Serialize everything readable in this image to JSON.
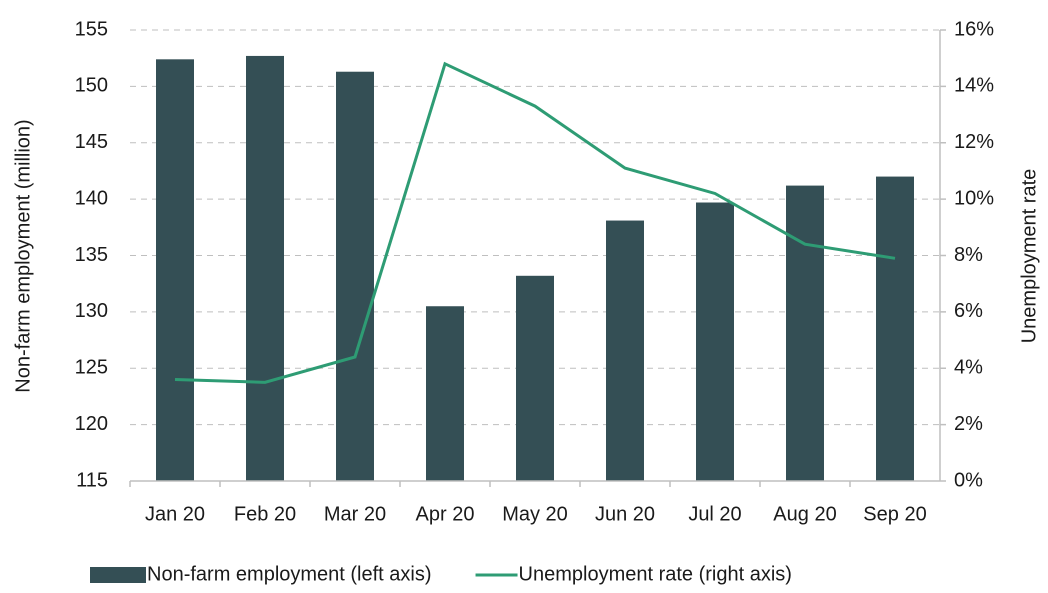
{
  "chart_data": {
    "type": "bar",
    "categories": [
      "Jan 20",
      "Feb 20",
      "Mar 20",
      "Apr 20",
      "May 20",
      "Jun 20",
      "Jul 20",
      "Aug 20",
      "Sep 20"
    ],
    "series": [
      {
        "name": "Non-farm employment (left axis)",
        "color": "#344f55",
        "type": "bar",
        "values": [
          152.4,
          152.7,
          151.3,
          130.5,
          133.2,
          138.1,
          139.7,
          141.2,
          142.0
        ]
      },
      {
        "name": "Unemployment rate (right axis)",
        "color": "#2e9c74",
        "type": "line",
        "axis": "y2",
        "values": [
          3.6,
          3.5,
          4.4,
          14.8,
          13.3,
          11.1,
          10.2,
          8.4,
          7.9
        ]
      }
    ],
    "y_label": "Non-farm employment (million)",
    "y2_label": "Unemployment rate",
    "ylim": [
      115,
      155
    ],
    "yticks": [
      115,
      120,
      125,
      130,
      135,
      140,
      145,
      150,
      155
    ],
    "y2lim": [
      0,
      16
    ],
    "y2ticks": [
      {
        "value": 0,
        "label": "0%"
      },
      {
        "value": 2,
        "label": "2%"
      },
      {
        "value": 4,
        "label": "4%"
      },
      {
        "value": 6,
        "label": "6%"
      },
      {
        "value": 8,
        "label": "8%"
      },
      {
        "value": 10,
        "label": "10%"
      },
      {
        "value": 12,
        "label": "12%"
      },
      {
        "value": 14,
        "label": "14%"
      },
      {
        "value": 16,
        "label": "16%"
      }
    ],
    "grid": true,
    "legend": "bottom"
  }
}
